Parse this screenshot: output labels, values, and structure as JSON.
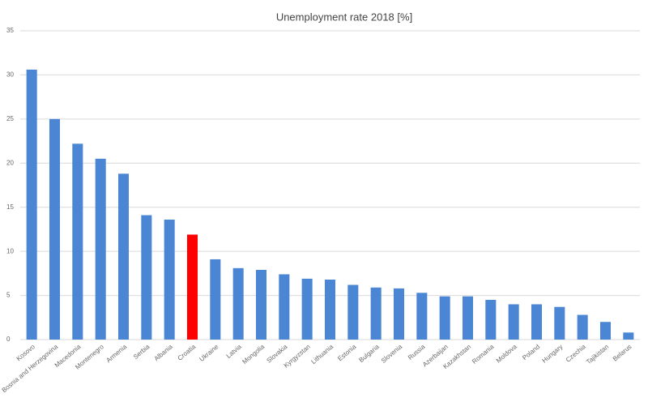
{
  "chart_data": {
    "type": "bar",
    "title": "Unemployment rate 2018 [%]",
    "categories": [
      "Kosovo",
      "Bosnia and Herzegovina",
      "Macedonia",
      "Montenegro",
      "Armenia",
      "Serbia",
      "Albania",
      "Croatia",
      "Ukraine",
      "Latvia",
      "Mongolia",
      "Slovakia",
      "Kyrgyzstan",
      "Lithuania",
      "Estonia",
      "Bulgaria",
      "Slovenia",
      "Russia",
      "Azerbaijan",
      "Kazakhstan",
      "Romania",
      "Moldova",
      "Poland",
      "Hungary",
      "Czechia",
      "Tajikistan",
      "Belarus"
    ],
    "values": [
      30.6,
      25.0,
      22.2,
      20.5,
      18.8,
      14.1,
      13.6,
      11.9,
      9.1,
      8.1,
      7.9,
      7.4,
      6.9,
      6.8,
      6.2,
      5.9,
      5.8,
      5.3,
      4.9,
      4.9,
      4.5,
      4.0,
      4.0,
      3.7,
      2.8,
      2.0,
      0.8
    ],
    "colors": [
      "#4a86d4",
      "#4a86d4",
      "#4a86d4",
      "#4a86d4",
      "#4a86d4",
      "#4a86d4",
      "#4a86d4",
      "#ff0000",
      "#4a86d4",
      "#4a86d4",
      "#4a86d4",
      "#4a86d4",
      "#4a86d4",
      "#4a86d4",
      "#4a86d4",
      "#4a86d4",
      "#4a86d4",
      "#4a86d4",
      "#4a86d4",
      "#4a86d4",
      "#4a86d4",
      "#4a86d4",
      "#4a86d4",
      "#4a86d4",
      "#4a86d4",
      "#4a86d4",
      "#4a86d4"
    ],
    "ylim": [
      0,
      35
    ],
    "yticks": [
      0,
      5,
      10,
      15,
      20,
      25,
      30,
      35
    ],
    "grid": true
  }
}
